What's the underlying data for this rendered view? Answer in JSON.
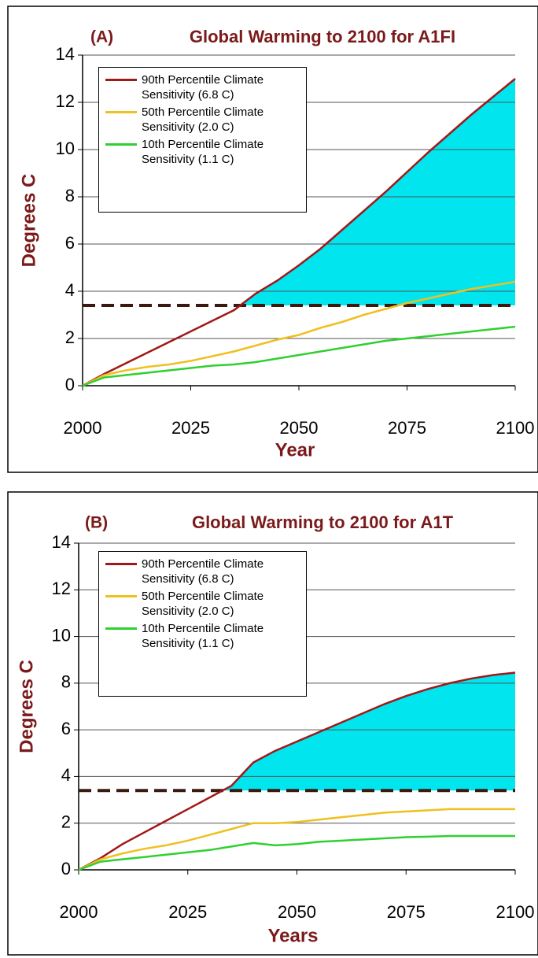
{
  "chart_data": [
    {
      "type": "line",
      "panel_label": "(A)",
      "title": "Global Warming to 2100 for A1FI",
      "x_label": "Year",
      "y_label": "Degrees C",
      "x": [
        2000,
        2005,
        2010,
        2015,
        2020,
        2025,
        2030,
        2035,
        2040,
        2045,
        2050,
        2055,
        2060,
        2065,
        2070,
        2075,
        2080,
        2085,
        2090,
        2095,
        2100
      ],
      "series": [
        {
          "name": "90th Percentile Climate Sensitivity (6.8 C)",
          "color": "#a01818",
          "values": [
            0,
            0.5,
            0.95,
            1.4,
            1.85,
            2.3,
            2.75,
            3.2,
            3.9,
            4.45,
            5.1,
            5.8,
            6.6,
            7.4,
            8.2,
            9.05,
            9.9,
            10.7,
            11.5,
            12.25,
            13.0
          ]
        },
        {
          "name": "50th Percentile Climate Sensitivity (2.0 C)",
          "color": "#f0c020",
          "values": [
            0,
            0.45,
            0.65,
            0.8,
            0.9,
            1.05,
            1.25,
            1.45,
            1.7,
            1.95,
            2.15,
            2.45,
            2.7,
            3.0,
            3.25,
            3.5,
            3.7,
            3.9,
            4.1,
            4.25,
            4.4
          ]
        },
        {
          "name": "10th Percentile Climate Sensitivity (1.1 C)",
          "color": "#30d030",
          "values": [
            0,
            0.35,
            0.45,
            0.55,
            0.65,
            0.75,
            0.85,
            0.9,
            1.0,
            1.15,
            1.3,
            1.45,
            1.6,
            1.75,
            1.9,
            2.0,
            2.1,
            2.2,
            2.3,
            2.4,
            2.5
          ]
        }
      ],
      "threshold": 3.4,
      "threshold_color": "#3a1a10",
      "fill_color": "#00e5ee",
      "xlim": [
        2000,
        2100
      ],
      "xticks": [
        2000,
        2025,
        2050,
        2075,
        2100
      ],
      "ylim": [
        0,
        14
      ],
      "yticks": [
        0,
        2,
        4,
        6,
        8,
        10,
        12,
        14
      ],
      "grid": true,
      "legend": "upper left"
    },
    {
      "type": "line",
      "panel_label": "(B)",
      "title": "Global Warming to 2100 for A1T",
      "x_label": "Years",
      "y_label": "Degrees C",
      "x": [
        2000,
        2005,
        2010,
        2015,
        2020,
        2025,
        2030,
        2035,
        2040,
        2045,
        2050,
        2055,
        2060,
        2065,
        2070,
        2075,
        2080,
        2085,
        2090,
        2095,
        2100
      ],
      "series": [
        {
          "name": "90th Percentile Climate Sensitivity (6.8 C)",
          "color": "#a01818",
          "values": [
            0,
            0.5,
            1.1,
            1.6,
            2.1,
            2.6,
            3.1,
            3.6,
            4.6,
            5.1,
            5.5,
            5.9,
            6.3,
            6.7,
            7.1,
            7.45,
            7.75,
            8.0,
            8.2,
            8.35,
            8.45
          ]
        },
        {
          "name": "50th Percentile Climate Sensitivity (2.0 C)",
          "color": "#f0c020",
          "values": [
            0,
            0.45,
            0.7,
            0.9,
            1.05,
            1.25,
            1.5,
            1.75,
            2.0,
            2.0,
            2.05,
            2.15,
            2.25,
            2.35,
            2.45,
            2.5,
            2.55,
            2.6,
            2.6,
            2.6,
            2.6
          ]
        },
        {
          "name": "10th Percentile Climate Sensitivity (1.1 C)",
          "color": "#30d030",
          "values": [
            0,
            0.35,
            0.45,
            0.55,
            0.65,
            0.75,
            0.85,
            1.0,
            1.15,
            1.05,
            1.1,
            1.2,
            1.25,
            1.3,
            1.35,
            1.4,
            1.42,
            1.45,
            1.45,
            1.45,
            1.45
          ]
        }
      ],
      "threshold": 3.4,
      "threshold_color": "#3a1a10",
      "fill_color": "#00e5ee",
      "xlim": [
        2000,
        2100
      ],
      "xticks": [
        2000,
        2025,
        2050,
        2075,
        2100
      ],
      "ylim": [
        0,
        14
      ],
      "yticks": [
        0,
        2,
        4,
        6,
        8,
        10,
        12,
        14
      ],
      "grid": true,
      "legend": "upper left"
    }
  ]
}
